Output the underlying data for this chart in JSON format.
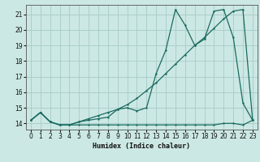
{
  "xlabel": "Humidex (Indice chaleur)",
  "bg_color": "#cce8e4",
  "grid_color": "#aacfcb",
  "line_color": "#1a6b60",
  "xlim": [
    -0.5,
    23.5
  ],
  "ylim": [
    13.6,
    21.6
  ],
  "yticks": [
    14,
    15,
    16,
    17,
    18,
    19,
    20,
    21
  ],
  "xticks": [
    0,
    1,
    2,
    3,
    4,
    5,
    6,
    7,
    8,
    9,
    10,
    11,
    12,
    13,
    14,
    15,
    16,
    17,
    18,
    19,
    20,
    21,
    22,
    23
  ],
  "line1_x": [
    0,
    1,
    2,
    3,
    4,
    5,
    6,
    7,
    8,
    9,
    10,
    11,
    12,
    13,
    14,
    15,
    16,
    17,
    18,
    19,
    20,
    21,
    22,
    23
  ],
  "line1_y": [
    14.2,
    14.7,
    14.1,
    13.9,
    13.9,
    13.9,
    13.9,
    13.9,
    13.9,
    13.9,
    13.9,
    13.9,
    13.9,
    13.9,
    13.9,
    13.9,
    13.9,
    13.9,
    13.9,
    13.9,
    14.0,
    14.0,
    13.9,
    14.2
  ],
  "line2_x": [
    0,
    1,
    2,
    3,
    4,
    5,
    6,
    7,
    8,
    9,
    10,
    11,
    12,
    13,
    14,
    15,
    16,
    17,
    18,
    19,
    20,
    21,
    22,
    23
  ],
  "line2_y": [
    14.2,
    14.7,
    14.1,
    13.9,
    13.9,
    14.1,
    14.2,
    14.3,
    14.4,
    14.9,
    15.0,
    14.8,
    15.0,
    17.2,
    18.7,
    21.3,
    20.3,
    19.0,
    19.4,
    21.2,
    21.3,
    19.5,
    15.3,
    14.2
  ],
  "line3_x": [
    0,
    1,
    2,
    3,
    4,
    5,
    6,
    7,
    8,
    9,
    10,
    11,
    12,
    13,
    14,
    15,
    16,
    17,
    18,
    19,
    20,
    21,
    22,
    23
  ],
  "line3_y": [
    14.2,
    14.7,
    14.1,
    13.9,
    13.9,
    14.1,
    14.3,
    14.5,
    14.7,
    14.9,
    15.2,
    15.6,
    16.1,
    16.6,
    17.2,
    17.8,
    18.4,
    19.0,
    19.5,
    20.1,
    20.7,
    21.2,
    21.3,
    14.2
  ]
}
